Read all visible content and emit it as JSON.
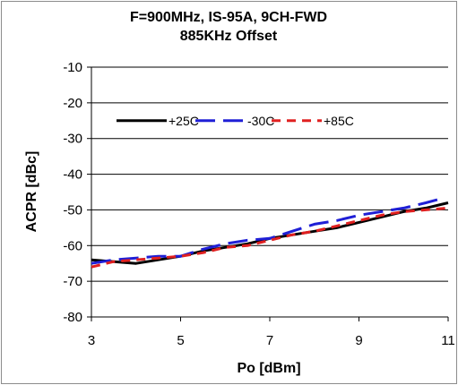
{
  "chart_data": {
    "type": "line",
    "title": "F=900MHz, IS-95A, 9CH-FWD",
    "subtitle": "885KHz Offset",
    "xlabel": "Po [dBm]",
    "ylabel": "ACPR [dBc]",
    "xlim": [
      3,
      11
    ],
    "ylim": [
      -80,
      -10
    ],
    "xticks": [
      3,
      5,
      7,
      9,
      11
    ],
    "yticks": [
      -10,
      -20,
      -30,
      -40,
      -50,
      -60,
      -70,
      -80
    ],
    "grid": "horizontal",
    "legend_position": "top",
    "series": [
      {
        "name": "+25C",
        "color": "#000000",
        "style": "solid",
        "x": [
          3.0,
          3.5,
          4.0,
          4.5,
          5.0,
          5.5,
          6.0,
          6.5,
          7.0,
          7.5,
          8.0,
          8.5,
          9.0,
          9.5,
          10.0,
          10.5,
          11.0
        ],
        "y": [
          -64,
          -64.5,
          -65,
          -64,
          -63,
          -61.5,
          -60.5,
          -59.5,
          -58,
          -57,
          -56,
          -55,
          -53.5,
          -52,
          -50.5,
          -49.5,
          -48
        ]
      },
      {
        "name": "-30C",
        "color": "#1f1fd6",
        "style": "long-dash",
        "x": [
          3.0,
          3.5,
          4.0,
          4.5,
          5.0,
          5.5,
          6.0,
          6.5,
          7.0,
          7.5,
          8.0,
          8.5,
          9.0,
          9.5,
          10.0,
          10.5,
          10.8
        ],
        "y": [
          -65,
          -64,
          -63.5,
          -63,
          -63,
          -61,
          -59.5,
          -58.5,
          -58,
          -56,
          -54,
          -53,
          -51.5,
          -50.5,
          -49.5,
          -48,
          -47
        ]
      },
      {
        "name": "+85C",
        "color": "#e02020",
        "style": "dash",
        "x": [
          3.0,
          3.5,
          4.0,
          4.5,
          5.0,
          5.5,
          6.0,
          6.5,
          7.0,
          7.5,
          8.0,
          8.5,
          9.0,
          9.5,
          10.0,
          10.5,
          11.0
        ],
        "y": [
          -66,
          -64.5,
          -64,
          -63.5,
          -63,
          -62,
          -60.5,
          -60,
          -58.5,
          -57,
          -56,
          -54.5,
          -53,
          -51.5,
          -50.5,
          -50,
          -49.5
        ]
      }
    ]
  }
}
